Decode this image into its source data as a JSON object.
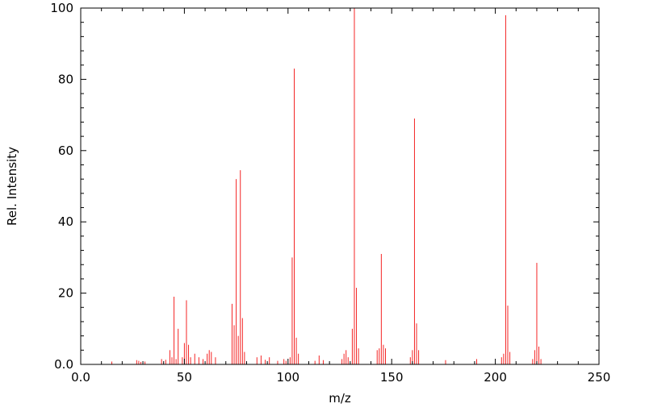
{
  "page": {
    "background": "#ffffff"
  },
  "chart_data": {
    "type": "bar",
    "subtype": "mass-spectrum-stick-plot",
    "title": "",
    "xlabel": "m/z",
    "ylabel": "Rel. Intensity",
    "xlim": [
      0,
      250
    ],
    "ylim": [
      0,
      100
    ],
    "grid": false,
    "legend": "none",
    "peak_color": "#f42525",
    "axis_color": "#000000",
    "x_tick_values": [
      0,
      50,
      100,
      150,
      200,
      250
    ],
    "x_tick_labels": [
      "0.0",
      "50",
      "100",
      "150",
      "200",
      "250"
    ],
    "y_tick_values": [
      0,
      20,
      40,
      60,
      80,
      100
    ],
    "y_tick_labels": [
      "0.0",
      "20",
      "40",
      "60",
      "80",
      "100"
    ],
    "x_minor_step": 10,
    "y_minor_step": 4,
    "peaks": [
      [
        15,
        0.8
      ],
      [
        27,
        1.2
      ],
      [
        28,
        1.0
      ],
      [
        29,
        0.7
      ],
      [
        31,
        0.8
      ],
      [
        39,
        1.5
      ],
      [
        41,
        1.3
      ],
      [
        43,
        4.0
      ],
      [
        44,
        2.0
      ],
      [
        45,
        19.0
      ],
      [
        46,
        1.5
      ],
      [
        47,
        10.0
      ],
      [
        49,
        2.0
      ],
      [
        50,
        6.0
      ],
      [
        51,
        18.0
      ],
      [
        52,
        5.5
      ],
      [
        53,
        2.0
      ],
      [
        55,
        3.0
      ],
      [
        57,
        2.0
      ],
      [
        59,
        1.5
      ],
      [
        61,
        3.0
      ],
      [
        62,
        4.0
      ],
      [
        63,
        3.5
      ],
      [
        65,
        2.0
      ],
      [
        73,
        17.0
      ],
      [
        74,
        11.0
      ],
      [
        75,
        52.0
      ],
      [
        76,
        8.0
      ],
      [
        77,
        54.5
      ],
      [
        78,
        13.0
      ],
      [
        79,
        3.5
      ],
      [
        85,
        2.0
      ],
      [
        87,
        2.5
      ],
      [
        89,
        1.3
      ],
      [
        91,
        2.0
      ],
      [
        95,
        1.0
      ],
      [
        98,
        1.5
      ],
      [
        99,
        1.0
      ],
      [
        101,
        2.0
      ],
      [
        102,
        30.0
      ],
      [
        103,
        83.0
      ],
      [
        104,
        7.5
      ],
      [
        105,
        3.0
      ],
      [
        113,
        1.0
      ],
      [
        115,
        2.5
      ],
      [
        117,
        1.2
      ],
      [
        126,
        1.5
      ],
      [
        127,
        3.0
      ],
      [
        128,
        4.0
      ],
      [
        129,
        2.0
      ],
      [
        131,
        10.0
      ],
      [
        132,
        100.0
      ],
      [
        133,
        21.5
      ],
      [
        134,
        4.5
      ],
      [
        143,
        4.0
      ],
      [
        144,
        4.5
      ],
      [
        145,
        31.0
      ],
      [
        146,
        5.5
      ],
      [
        147,
        4.5
      ],
      [
        159,
        2.0
      ],
      [
        160,
        4.0
      ],
      [
        161,
        69.0
      ],
      [
        162,
        11.5
      ],
      [
        163,
        4.0
      ],
      [
        176,
        1.2
      ],
      [
        191,
        1.5
      ],
      [
        203,
        2.0
      ],
      [
        204,
        3.0
      ],
      [
        205,
        98.0
      ],
      [
        206,
        16.5
      ],
      [
        207,
        3.5
      ],
      [
        218,
        1.5
      ],
      [
        219,
        4.0
      ],
      [
        220,
        28.5
      ],
      [
        221,
        5.0
      ],
      [
        222,
        1.5
      ]
    ]
  }
}
